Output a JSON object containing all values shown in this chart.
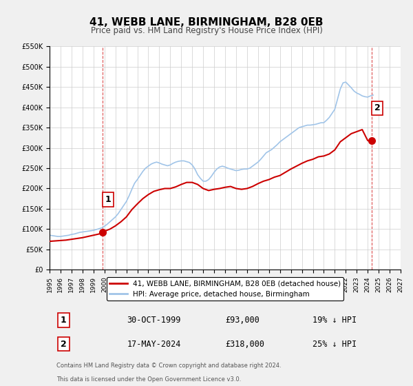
{
  "title": "41, WEBB LANE, BIRMINGHAM, B28 0EB",
  "subtitle": "Price paid vs. HM Land Registry's House Price Index (HPI)",
  "background_color": "#f0f0f0",
  "plot_bg_color": "#ffffff",
  "grid_color": "#cccccc",
  "hpi_color": "#a0c4e8",
  "price_color": "#cc0000",
  "x_min": 1995.0,
  "x_max": 2027.0,
  "y_min": 0,
  "y_max": 550000,
  "y_ticks": [
    0,
    50000,
    100000,
    150000,
    200000,
    250000,
    300000,
    350000,
    400000,
    450000,
    500000,
    550000
  ],
  "sale1_x": 1999.833,
  "sale1_y": 93000,
  "sale2_x": 2024.375,
  "sale2_y": 318000,
  "annotation1_label": "1",
  "annotation2_label": "2",
  "legend_label_price": "41, WEBB LANE, BIRMINGHAM, B28 0EB (detached house)",
  "legend_label_hpi": "HPI: Average price, detached house, Birmingham",
  "table_rows": [
    [
      "1",
      "30-OCT-1999",
      "£93,000",
      "19% ↓ HPI"
    ],
    [
      "2",
      "17-MAY-2024",
      "£318,000",
      "25% ↓ HPI"
    ]
  ],
  "footnote1": "Contains HM Land Registry data © Crown copyright and database right 2024.",
  "footnote2": "This data is licensed under the Open Government Licence v3.0.",
  "hpi_data_x": [
    1995.0,
    1995.25,
    1995.5,
    1995.75,
    1996.0,
    1996.25,
    1996.5,
    1996.75,
    1997.0,
    1997.25,
    1997.5,
    1997.75,
    1998.0,
    1998.25,
    1998.5,
    1998.75,
    1999.0,
    1999.25,
    1999.5,
    1999.75,
    2000.0,
    2000.25,
    2000.5,
    2000.75,
    2001.0,
    2001.25,
    2001.5,
    2001.75,
    2002.0,
    2002.25,
    2002.5,
    2002.75,
    2003.0,
    2003.25,
    2003.5,
    2003.75,
    2004.0,
    2004.25,
    2004.5,
    2004.75,
    2005.0,
    2005.25,
    2005.5,
    2005.75,
    2006.0,
    2006.25,
    2006.5,
    2006.75,
    2007.0,
    2007.25,
    2007.5,
    2007.75,
    2008.0,
    2008.25,
    2008.5,
    2008.75,
    2009.0,
    2009.25,
    2009.5,
    2009.75,
    2010.0,
    2010.25,
    2010.5,
    2010.75,
    2011.0,
    2011.25,
    2011.5,
    2011.75,
    2012.0,
    2012.25,
    2012.5,
    2012.75,
    2013.0,
    2013.25,
    2013.5,
    2013.75,
    2014.0,
    2014.25,
    2014.5,
    2014.75,
    2015.0,
    2015.25,
    2015.5,
    2015.75,
    2016.0,
    2016.25,
    2016.5,
    2016.75,
    2017.0,
    2017.25,
    2017.5,
    2017.75,
    2018.0,
    2018.25,
    2018.5,
    2018.75,
    2019.0,
    2019.25,
    2019.5,
    2019.75,
    2020.0,
    2020.25,
    2020.5,
    2020.75,
    2021.0,
    2021.25,
    2021.5,
    2021.75,
    2022.0,
    2022.25,
    2022.5,
    2022.75,
    2023.0,
    2023.25,
    2023.5,
    2023.75,
    2024.0,
    2024.25,
    2024.5
  ],
  "hpi_data_y": [
    85000,
    84000,
    83000,
    82000,
    82000,
    83000,
    84000,
    85000,
    87000,
    88000,
    90000,
    92000,
    93000,
    94000,
    95000,
    96000,
    97000,
    99000,
    101000,
    103000,
    107000,
    112000,
    118000,
    124000,
    130000,
    138000,
    148000,
    158000,
    168000,
    182000,
    198000,
    213000,
    222000,
    232000,
    242000,
    250000,
    255000,
    260000,
    263000,
    265000,
    263000,
    260000,
    258000,
    256000,
    258000,
    262000,
    265000,
    267000,
    268000,
    268000,
    266000,
    264000,
    258000,
    248000,
    234000,
    225000,
    218000,
    218000,
    222000,
    230000,
    240000,
    248000,
    253000,
    255000,
    253000,
    250000,
    248000,
    246000,
    244000,
    245000,
    247000,
    248000,
    248000,
    250000,
    255000,
    260000,
    265000,
    272000,
    280000,
    288000,
    292000,
    296000,
    302000,
    308000,
    315000,
    320000,
    325000,
    330000,
    335000,
    340000,
    345000,
    350000,
    352000,
    354000,
    356000,
    356000,
    357000,
    358000,
    360000,
    362000,
    362000,
    368000,
    375000,
    385000,
    395000,
    420000,
    445000,
    460000,
    462000,
    455000,
    448000,
    440000,
    435000,
    432000,
    428000,
    426000,
    425000,
    428000,
    430000
  ],
  "price_data_x": [
    1995.0,
    1995.5,
    1996.0,
    1996.5,
    1997.0,
    1997.5,
    1998.0,
    1998.5,
    1999.0,
    1999.5,
    1999.833,
    2000.5,
    2001.0,
    2001.5,
    2002.0,
    2002.5,
    2003.0,
    2003.5,
    2004.0,
    2004.5,
    2005.0,
    2005.5,
    2006.0,
    2006.5,
    2007.0,
    2007.5,
    2008.0,
    2008.5,
    2009.0,
    2009.5,
    2010.0,
    2010.5,
    2011.0,
    2011.5,
    2012.0,
    2012.5,
    2013.0,
    2013.5,
    2014.0,
    2014.5,
    2015.0,
    2015.5,
    2016.0,
    2016.5,
    2017.0,
    2017.5,
    2018.0,
    2018.5,
    2019.0,
    2019.5,
    2020.0,
    2020.5,
    2021.0,
    2021.5,
    2022.0,
    2022.5,
    2023.0,
    2023.5,
    2024.0,
    2024.375
  ],
  "price_data_y": [
    70000,
    71000,
    72000,
    73000,
    75000,
    77000,
    79000,
    82000,
    85000,
    88000,
    93000,
    100000,
    108000,
    118000,
    130000,
    148000,
    162000,
    175000,
    185000,
    193000,
    197000,
    200000,
    200000,
    204000,
    210000,
    215000,
    215000,
    210000,
    200000,
    195000,
    198000,
    200000,
    203000,
    205000,
    200000,
    198000,
    200000,
    205000,
    212000,
    218000,
    222000,
    228000,
    232000,
    240000,
    248000,
    255000,
    262000,
    268000,
    272000,
    278000,
    280000,
    285000,
    295000,
    315000,
    325000,
    335000,
    340000,
    345000,
    318000,
    318000
  ]
}
